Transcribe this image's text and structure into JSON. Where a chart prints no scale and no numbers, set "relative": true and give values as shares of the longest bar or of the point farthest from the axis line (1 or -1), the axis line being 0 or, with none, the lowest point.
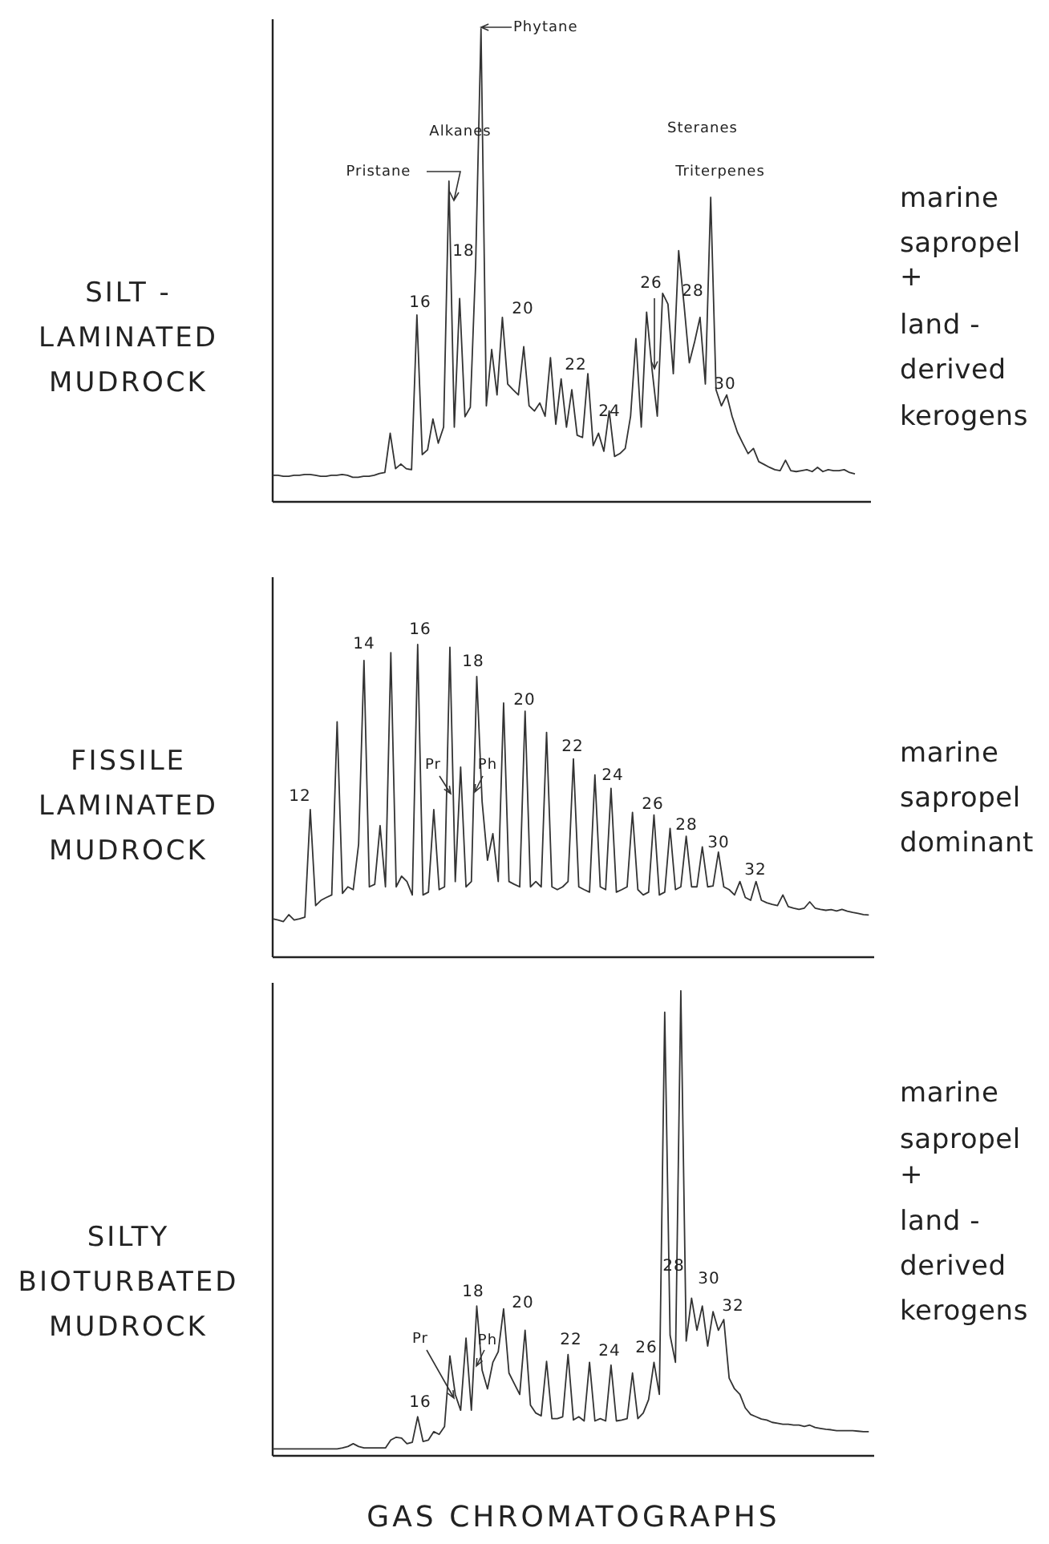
{
  "chart_data": [
    {
      "type": "line",
      "relative": true,
      "title": "SILT -\nLAMINATED\nMUDROCK",
      "annotations": [
        "Phytane",
        "Alkanes",
        "Steranes",
        "Pristane",
        "Triterpenes",
        "16",
        "18",
        "20",
        "22",
        "24",
        "26",
        "28",
        "30",
        "marine\nsapropel\n+\nland -\nderived\nkerogens"
      ],
      "categories": [
        null,
        null,
        null,
        null,
        null,
        null,
        null,
        null,
        null,
        null,
        null,
        null,
        null,
        null,
        null,
        null,
        null,
        null,
        null,
        null,
        null,
        null,
        null,
        null,
        null,
        null,
        null,
        null,
        null,
        null,
        null,
        null,
        null,
        null,
        null,
        null,
        null,
        null,
        null,
        null,
        null,
        null,
        null,
        null,
        null,
        null,
        null,
        null,
        null,
        null,
        null,
        null,
        null,
        null,
        null,
        null,
        null,
        null,
        null,
        null,
        null,
        null,
        null,
        null,
        null,
        null,
        null,
        null,
        null,
        null,
        null,
        null,
        null,
        null,
        null,
        null,
        null,
        null,
        null,
        null,
        null,
        null,
        null,
        null,
        null,
        null,
        null,
        null,
        null,
        null,
        null,
        null,
        null,
        null,
        null,
        null,
        null,
        null,
        null,
        null,
        null,
        null,
        null,
        null,
        null,
        null,
        null,
        null,
        null,
        null,
        null,
        null,
        null
      ],
      "series": [
        {
          "color": "#333333",
          "values": [
            0.056,
            0.056,
            0.054,
            0.054,
            0.056,
            0.056,
            0.058,
            0.058,
            0.056,
            0.054,
            0.054,
            0.056,
            0.056,
            0.058,
            0.056,
            0.052,
            0.052,
            0.054,
            0.054,
            0.056,
            0.06,
            0.062,
            0.145,
            0.07,
            0.08,
            0.07,
            0.068,
            0.395,
            0.1,
            0.11,
            0.175,
            0.124,
            0.158,
            0.678,
            0.158,
            0.43,
            0.18,
            0.2,
            0.503,
            1.0,
            0.203,
            0.322,
            0.226,
            0.39,
            0.249,
            0.237,
            0.226,
            0.328,
            0.203,
            0.192,
            0.209,
            0.181,
            0.305,
            0.164,
            0.26,
            0.158,
            0.237,
            0.141,
            0.136,
            0.271,
            0.119,
            0.145,
            0.107,
            0.192,
            0.096,
            0.102,
            0.113,
            0.181,
            0.345,
            0.158,
            0.401,
            0.282,
            0.181,
            0.441,
            0.418,
            0.271,
            0.531,
            0.418,
            0.294,
            0.339,
            0.39,
            0.249,
            0.644,
            0.237,
            0.203,
            0.226,
            0.181,
            0.147,
            0.124,
            0.102,
            0.113,
            0.085,
            0.079,
            0.073,
            0.068,
            0.066,
            0.088,
            0.066,
            0.064,
            0.066,
            0.068,
            0.064,
            0.073,
            0.064,
            0.068,
            0.066,
            0.066,
            0.068,
            0.062,
            0.059,
            null,
            null,
            null
          ]
        }
      ]
    },
    {
      "type": "line",
      "relative": true,
      "title": "FISSILE\nLAMINATED\nMUDROCK",
      "annotations": [
        "12",
        "14",
        "16",
        "18",
        "20",
        "22",
        "24",
        "26",
        "28",
        "30",
        "32",
        "Pr",
        "Ph",
        "marine\nsapropel\ndominant"
      ],
      "categories": [
        null,
        null,
        null,
        null,
        null,
        null,
        null,
        null,
        null,
        null,
        null,
        null,
        null,
        null,
        null,
        null,
        null,
        null,
        null,
        null,
        null,
        null,
        null,
        null,
        null,
        null,
        null,
        null,
        null,
        null,
        null,
        null,
        null,
        null,
        null,
        null,
        null,
        null,
        null,
        null,
        null,
        null,
        null,
        null,
        null,
        null,
        null,
        null,
        null,
        null,
        null,
        null,
        null,
        null,
        null,
        null,
        null,
        null,
        null,
        null,
        null,
        null,
        null,
        null,
        null,
        null,
        null,
        null,
        null,
        null,
        null,
        null,
        null,
        null,
        null,
        null,
        null,
        null,
        null,
        null,
        null,
        null,
        null,
        null,
        null,
        null,
        null,
        null,
        null,
        null,
        null,
        null,
        null,
        null,
        null,
        null,
        null,
        null,
        null,
        null,
        null,
        null,
        null,
        null,
        null,
        null,
        null,
        null,
        null,
        null,
        null,
        null,
        null
      ],
      "series": [
        {
          "color": "#333333",
          "values": [
            0.123,
            0.119,
            0.114,
            0.136,
            0.119,
            0.123,
            0.128,
            0.472,
            0.165,
            0.182,
            0.191,
            0.199,
            0.753,
            0.204,
            0.225,
            0.216,
            0.361,
            0.949,
            0.225,
            0.233,
            0.421,
            0.225,
            0.974,
            0.225,
            0.259,
            0.242,
            0.199,
            1.0,
            0.199,
            0.208,
            0.472,
            0.216,
            0.225,
            0.991,
            0.242,
            0.608,
            0.225,
            0.242,
            0.898,
            0.497,
            0.31,
            0.395,
            0.242,
            0.813,
            0.242,
            0.233,
            0.225,
            0.787,
            0.225,
            0.242,
            0.225,
            0.719,
            0.225,
            0.216,
            0.225,
            0.242,
            0.634,
            0.225,
            0.216,
            0.208,
            0.583,
            0.225,
            0.216,
            0.54,
            0.208,
            0.216,
            0.225,
            0.463,
            0.216,
            0.199,
            0.208,
            0.455,
            0.199,
            0.208,
            0.412,
            0.216,
            0.225,
            0.387,
            0.225,
            0.225,
            0.353,
            0.225,
            0.228,
            0.336,
            0.225,
            0.216,
            0.199,
            0.242,
            0.191,
            0.182,
            0.242,
            0.182,
            0.174,
            0.169,
            0.165,
            0.199,
            0.162,
            0.157,
            0.153,
            0.157,
            0.177,
            0.157,
            0.153,
            0.15,
            0.152,
            0.148,
            0.153,
            0.147,
            0.143,
            0.14,
            0.136,
            0.135,
            null
          ]
        }
      ]
    },
    {
      "type": "line",
      "relative": true,
      "title": "SILTY\nBIOTURBATED\nMUDROCK",
      "xlabel": "GAS CHROMATOGRAPHS",
      "annotations": [
        "16",
        "18",
        "20",
        "22",
        "24",
        "26",
        "28",
        "30",
        "32",
        "Pr",
        "Ph",
        "marine\nsapropel\n+\nland -\nderived\nkerogens"
      ],
      "categories": [
        null,
        null,
        null,
        null,
        null,
        null,
        null,
        null,
        null,
        null,
        null,
        null,
        null,
        null,
        null,
        null,
        null,
        null,
        null,
        null,
        null,
        null,
        null,
        null,
        null,
        null,
        null,
        null,
        null,
        null,
        null,
        null,
        null,
        null,
        null,
        null,
        null,
        null,
        null,
        null,
        null,
        null,
        null,
        null,
        null,
        null,
        null,
        null,
        null,
        null,
        null,
        null,
        null,
        null,
        null,
        null,
        null,
        null,
        null,
        null,
        null,
        null,
        null,
        null,
        null,
        null,
        null,
        null,
        null,
        null,
        null,
        null,
        null,
        null,
        null,
        null,
        null,
        null,
        null,
        null,
        null,
        null,
        null,
        null,
        null,
        null,
        null,
        null,
        null,
        null,
        null,
        null,
        null,
        null,
        null,
        null,
        null,
        null,
        null,
        null,
        null,
        null,
        null,
        null,
        null,
        null,
        null,
        null,
        null,
        null,
        null,
        null,
        null
      ],
      "series": [
        {
          "color": "#333333",
          "values": [
            0.015,
            0.015,
            0.015,
            0.015,
            0.015,
            0.015,
            0.015,
            0.015,
            0.015,
            0.015,
            0.015,
            0.015,
            0.015,
            0.017,
            0.02,
            0.026,
            0.02,
            0.017,
            0.017,
            0.017,
            0.017,
            0.017,
            0.034,
            0.04,
            0.038,
            0.026,
            0.029,
            0.084,
            0.031,
            0.034,
            0.052,
            0.046,
            0.063,
            0.215,
            0.132,
            0.098,
            0.253,
            0.098,
            0.322,
            0.184,
            0.144,
            0.201,
            0.224,
            0.316,
            0.178,
            0.155,
            0.132,
            0.27,
            0.109,
            0.092,
            0.086,
            0.203,
            0.08,
            0.08,
            0.084,
            0.218,
            0.077,
            0.084,
            0.075,
            0.201,
            0.075,
            0.08,
            0.075,
            0.195,
            0.075,
            0.077,
            0.08,
            0.178,
            0.08,
            0.092,
            0.121,
            0.201,
            0.132,
            0.954,
            0.259,
            0.201,
            1.0,
            0.247,
            0.339,
            0.27,
            0.322,
            0.236,
            0.31,
            0.27,
            0.293,
            0.167,
            0.144,
            0.132,
            0.103,
            0.089,
            0.084,
            0.079,
            0.077,
            0.072,
            0.07,
            0.068,
            0.068,
            0.066,
            0.066,
            0.063,
            0.066,
            0.061,
            0.059,
            0.057,
            0.056,
            0.054,
            0.054,
            0.054,
            0.054,
            0.053,
            0.052,
            0.052,
            null
          ]
        }
      ]
    }
  ]
}
